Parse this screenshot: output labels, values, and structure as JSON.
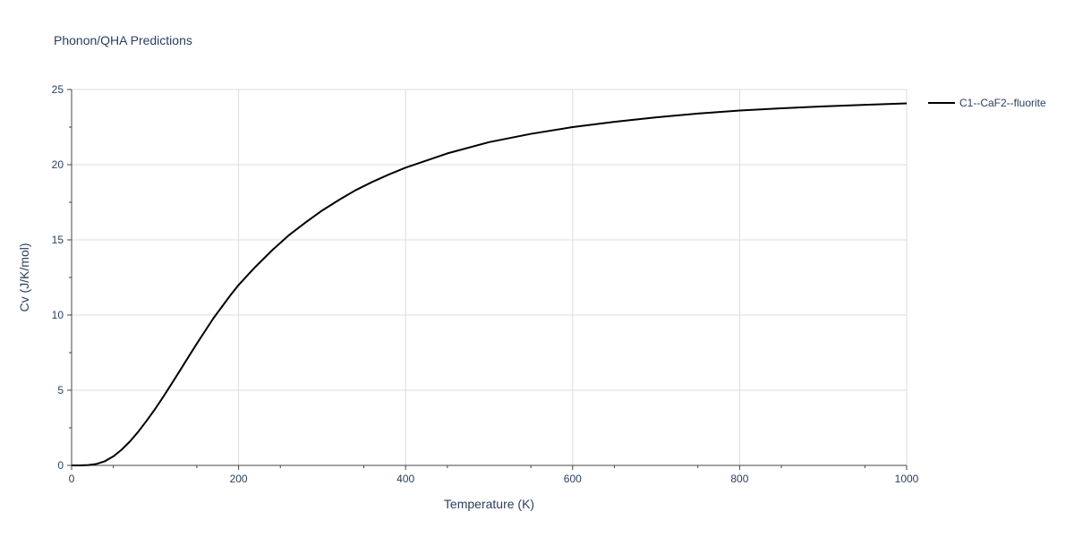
{
  "chart_data": {
    "type": "line",
    "title": "Phonon/QHA Predictions",
    "xlabel": "Temperature (K)",
    "ylabel": "Cv (J/K/mol)",
    "xlim": [
      0,
      1000
    ],
    "ylim": [
      0,
      25
    ],
    "xticks": [
      "0",
      "200",
      "400",
      "600",
      "800",
      "1000"
    ],
    "yticks": [
      "0",
      "5",
      "10",
      "15",
      "20",
      "25"
    ],
    "grid": true,
    "legend_position": "top-right",
    "series": [
      {
        "name": "C1--CaF2--fluorite",
        "color": "#000000",
        "x": [
          0,
          10,
          20,
          30,
          40,
          50,
          60,
          70,
          80,
          90,
          100,
          110,
          120,
          130,
          140,
          150,
          160,
          170,
          180,
          190,
          200,
          220,
          240,
          260,
          280,
          300,
          320,
          340,
          360,
          380,
          400,
          450,
          500,
          550,
          600,
          650,
          700,
          750,
          800,
          850,
          900,
          950,
          1000
        ],
        "y": [
          0,
          0.0,
          0.02,
          0.1,
          0.28,
          0.6,
          1.05,
          1.6,
          2.25,
          2.98,
          3.75,
          4.58,
          5.45,
          6.33,
          7.22,
          8.1,
          8.95,
          9.8,
          10.55,
          11.3,
          12.0,
          13.2,
          14.3,
          15.3,
          16.15,
          16.95,
          17.65,
          18.3,
          18.85,
          19.35,
          19.8,
          20.75,
          21.5,
          22.05,
          22.5,
          22.85,
          23.15,
          23.4,
          23.6,
          23.75,
          23.88,
          23.98,
          24.08
        ]
      }
    ]
  }
}
